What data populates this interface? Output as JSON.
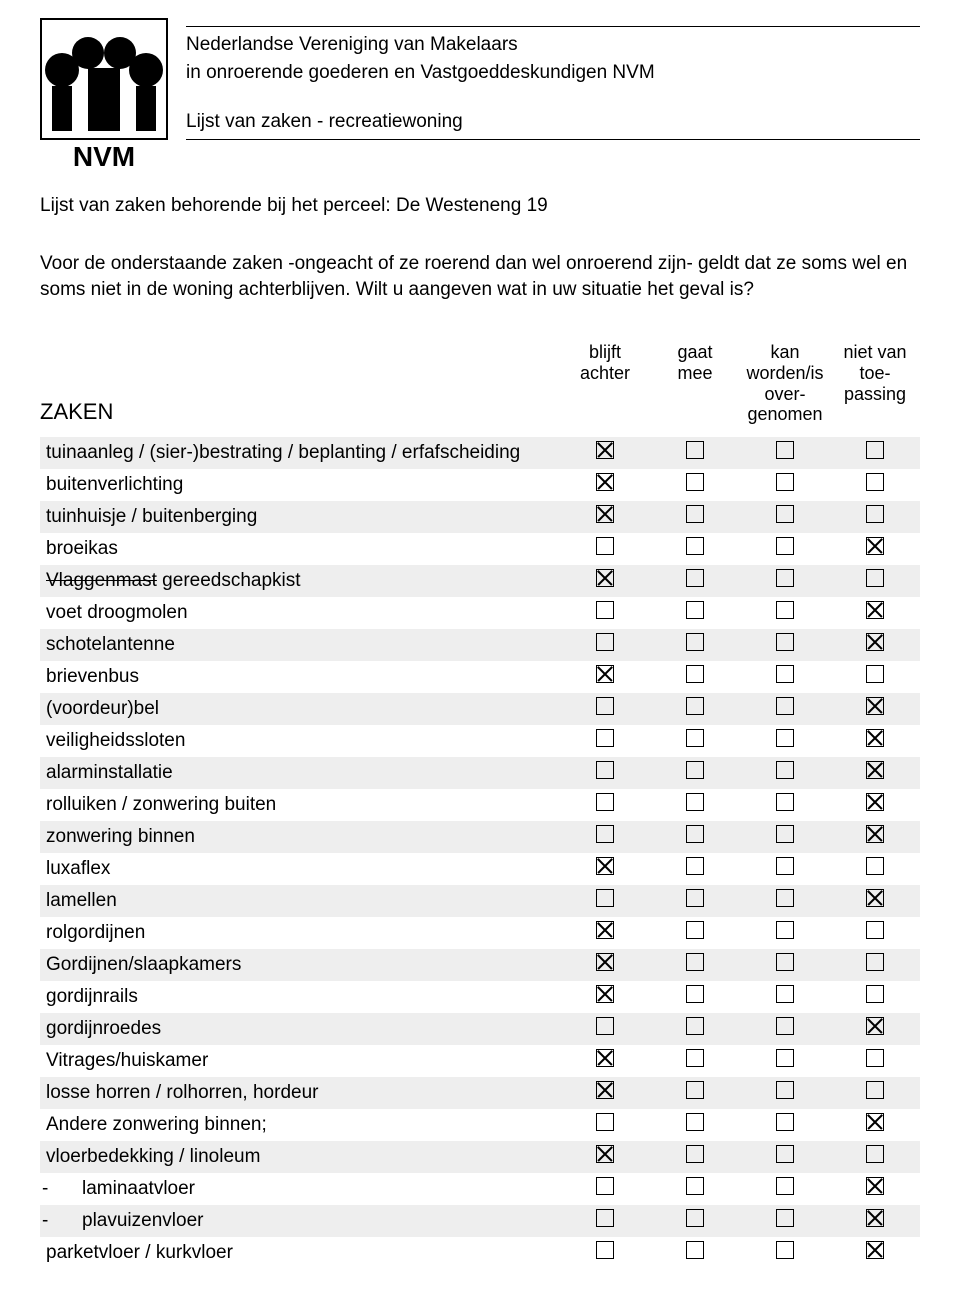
{
  "header": {
    "org_line1": "Nederlandse Vereniging van Makelaars",
    "org_line2": "in onroerende goederen en Vastgoeddeskundigen NVM",
    "doc_title": "Lijst van zaken - recreatiewoning",
    "logo_text": "NVM"
  },
  "perceel": {
    "label": "Lijst van zaken behorende bij het perceel:",
    "value": "De Westeneng 19"
  },
  "intro": "Voor de onderstaande zaken -ongeacht of ze roerend dan wel onroerend zijn- geldt dat ze soms wel en soms niet in de woning achterblijven. Wilt u aangeven wat in uw situatie het geval is?",
  "columns": {
    "zaken": "ZAKEN",
    "c1_l1": "blijft",
    "c1_l2": "achter",
    "c2_l1": "gaat",
    "c2_l2": "mee",
    "c3_l1": "kan",
    "c3_l2": "worden/is",
    "c3_l3": "over-",
    "c3_l4": "genomen",
    "c4_l1": "niet van",
    "c4_l2": "toe-",
    "c4_l3": "passing"
  },
  "rows": [
    {
      "label": "tuinaanleg / (sier-)bestrating / beplanting / erfafscheiding",
      "checks": [
        true,
        false,
        false,
        false
      ],
      "shaded": true
    },
    {
      "label": "buitenverlichting",
      "checks": [
        true,
        false,
        false,
        false
      ],
      "shaded": false
    },
    {
      "label": "tuinhuisje / buitenberging",
      "checks": [
        true,
        false,
        false,
        false
      ],
      "shaded": true
    },
    {
      "label": "broeikas",
      "checks": [
        false,
        false,
        false,
        true
      ],
      "shaded": false
    },
    {
      "label_strike": "Vlaggenmast",
      "label_after": "  gereedschapkist",
      "checks": [
        true,
        false,
        false,
        false
      ],
      "shaded": true
    },
    {
      "label": "voet droogmolen",
      "checks": [
        false,
        false,
        false,
        true
      ],
      "shaded": false
    },
    {
      "label": "schotelantenne",
      "checks": [
        false,
        false,
        false,
        true
      ],
      "shaded": true
    },
    {
      "label": "brievenbus",
      "checks": [
        true,
        false,
        false,
        false
      ],
      "shaded": false
    },
    {
      "label": "(voordeur)bel",
      "checks": [
        false,
        false,
        false,
        true
      ],
      "shaded": true
    },
    {
      "label": "veiligheidssloten",
      "checks": [
        false,
        false,
        false,
        true
      ],
      "shaded": false
    },
    {
      "label": "alarminstallatie",
      "checks": [
        false,
        false,
        false,
        true
      ],
      "shaded": true
    },
    {
      "label": "rolluiken / zonwering buiten",
      "checks": [
        false,
        false,
        false,
        true
      ],
      "shaded": false
    },
    {
      "label": "zonwering binnen",
      "checks": [
        false,
        false,
        false,
        true
      ],
      "shaded": true
    },
    {
      "label": "luxaflex",
      "checks": [
        true,
        false,
        false,
        false
      ],
      "shaded": false
    },
    {
      "label": "lamellen",
      "checks": [
        false,
        false,
        false,
        true
      ],
      "shaded": true
    },
    {
      "label": "rolgordijnen",
      "checks": [
        true,
        false,
        false,
        false
      ],
      "shaded": false
    },
    {
      "label": "Gordijnen/slaapkamers",
      "checks": [
        true,
        false,
        false,
        false
      ],
      "shaded": true
    },
    {
      "label": "gordijnrails",
      "checks": [
        true,
        false,
        false,
        false
      ],
      "shaded": false
    },
    {
      "label": "gordijnroedes",
      "checks": [
        false,
        false,
        false,
        true
      ],
      "shaded": true
    },
    {
      "label": "Vitrages/huiskamer",
      "checks": [
        true,
        false,
        false,
        false
      ],
      "shaded": false
    },
    {
      "label": "losse horren / rolhorren, hordeur",
      "checks": [
        true,
        false,
        false,
        false
      ],
      "shaded": true
    },
    {
      "label": "Andere zonwering binnen;",
      "checks": [
        false,
        false,
        false,
        true
      ],
      "shaded": false
    },
    {
      "label": "vloerbedekking / linoleum",
      "checks": [
        true,
        false,
        false,
        false
      ],
      "shaded": true
    },
    {
      "label": "laminaatvloer",
      "checks": [
        false,
        false,
        false,
        true
      ],
      "shaded": false,
      "indent": true
    },
    {
      "label": "plavuizenvloer",
      "checks": [
        false,
        false,
        false,
        true
      ],
      "shaded": true,
      "indent": true
    },
    {
      "label": "parketvloer / kurkvloer",
      "checks": [
        false,
        false,
        false,
        true
      ],
      "shaded": false
    }
  ],
  "colors": {
    "shaded_bg": "#eeeeee",
    "text": "#000000",
    "page_bg": "#ffffff"
  }
}
